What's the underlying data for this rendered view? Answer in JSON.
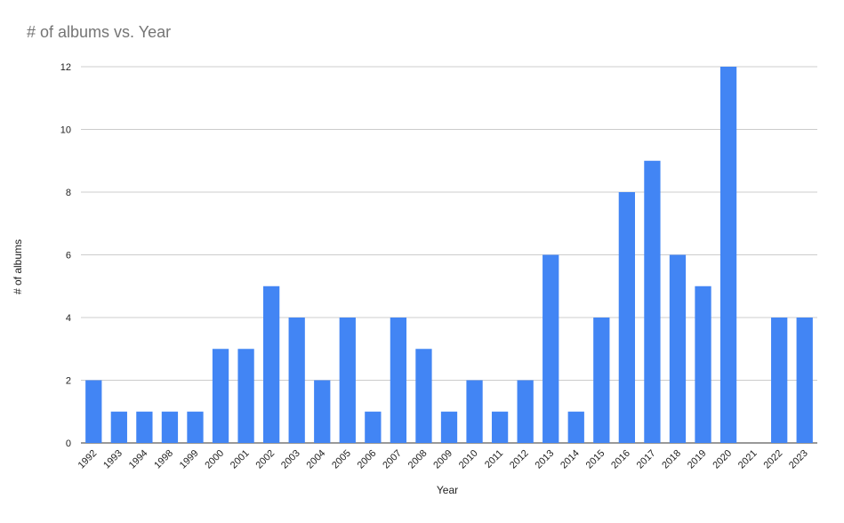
{
  "chart_data": {
    "type": "bar",
    "title": "# of albums vs. Year",
    "xlabel": "Year",
    "ylabel": "# of albums",
    "categories": [
      "1992",
      "1993",
      "1994",
      "1998",
      "1999",
      "2000",
      "2001",
      "2002",
      "2003",
      "2004",
      "2005",
      "2006",
      "2007",
      "2008",
      "2009",
      "2010",
      "2011",
      "2012",
      "2013",
      "2014",
      "2015",
      "2016",
      "2017",
      "2018",
      "2019",
      "2020",
      "2021",
      "2022",
      "2023"
    ],
    "values": [
      2,
      1,
      1,
      1,
      1,
      3,
      3,
      5,
      4,
      2,
      4,
      1,
      4,
      3,
      1,
      2,
      1,
      2,
      6,
      1,
      4,
      8,
      9,
      6,
      5,
      12,
      0,
      4,
      4
    ],
    "ylim": [
      0,
      12
    ],
    "yticks": [
      0,
      2,
      4,
      6,
      8,
      10,
      12
    ],
    "grid": true,
    "color": "#4285F4"
  }
}
